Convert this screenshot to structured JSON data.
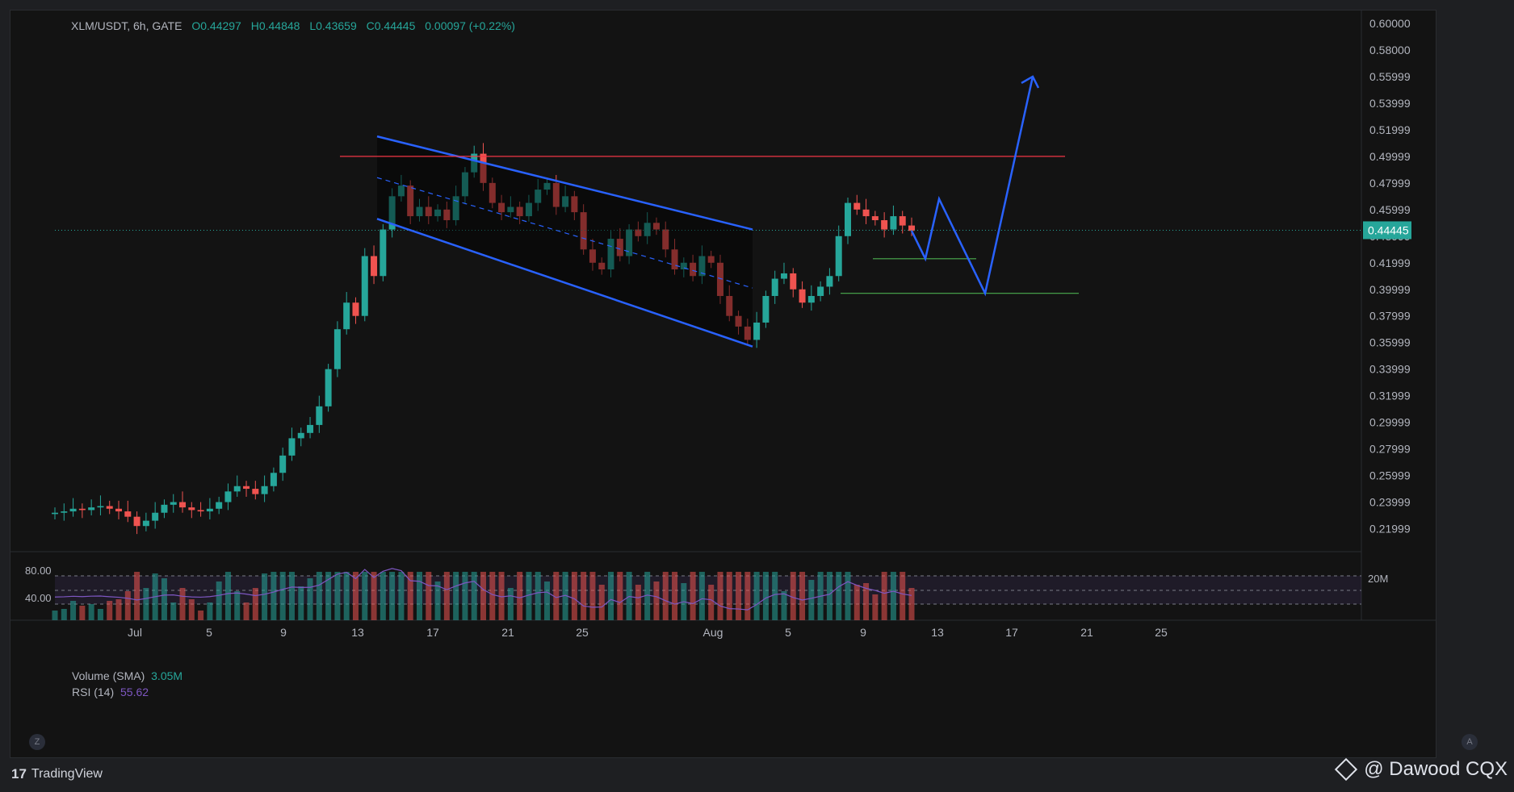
{
  "legend": {
    "symbol": "XLM/USDT, 6h, GATE",
    "open": "O0.44297",
    "high": "H0.44848",
    "low": "L0.43659",
    "close": "C0.44445",
    "change": "0.00097 (+0.22%)"
  },
  "indicators": {
    "volume_label": "Volume (SMA)",
    "volume_value": "3.05M",
    "rsi_label": "RSI (14)",
    "rsi_value": "55.62",
    "rsi_axis": [
      "80.00",
      "40.00"
    ],
    "volume_axis": "20M"
  },
  "price_axis": [
    "0.60000",
    "0.58000",
    "0.55999",
    "0.53999",
    "0.51999",
    "0.49999",
    "0.47999",
    "0.45999",
    "0.43999",
    "0.41999",
    "0.39999",
    "0.37999",
    "0.35999",
    "0.33999",
    "0.31999",
    "0.29999",
    "0.27999",
    "0.25999",
    "0.23999",
    "0.21999"
  ],
  "current_price": "0.44445",
  "time_axis": [
    "Jul",
    "5",
    "9",
    "13",
    "17",
    "21",
    "25",
    "Aug",
    "5",
    "9",
    "13",
    "17",
    "21",
    "25"
  ],
  "buttons": {
    "zoom": "Z",
    "auto": "A"
  },
  "footer": {
    "brand": "TradingView",
    "brand_logo": "17",
    "credit": "@ Dawood CQX"
  },
  "colors": {
    "up": "#26a69a",
    "down": "#ef5350",
    "channel": "#2962ff",
    "resistance": "#f23645",
    "support": "#4caf50",
    "rsi": "#7e57c2"
  },
  "chart_data": {
    "type": "candlestick",
    "timeframe": "6h",
    "x_range": [
      "Jun 30",
      "Aug 27"
    ],
    "ylim": [
      0.21,
      0.6
    ],
    "candles_close_approx": [
      0.232,
      0.233,
      0.235,
      0.234,
      0.236,
      0.237,
      0.235,
      0.233,
      0.229,
      0.222,
      0.226,
      0.232,
      0.238,
      0.24,
      0.236,
      0.234,
      0.233,
      0.235,
      0.24,
      0.248,
      0.252,
      0.25,
      0.246,
      0.252,
      0.262,
      0.275,
      0.288,
      0.292,
      0.298,
      0.312,
      0.34,
      0.37,
      0.39,
      0.38,
      0.425,
      0.41,
      0.445,
      0.47,
      0.478,
      0.455,
      0.462,
      0.455,
      0.46,
      0.452,
      0.47,
      0.488,
      0.502,
      0.48,
      0.465,
      0.458,
      0.462,
      0.455,
      0.465,
      0.475,
      0.48,
      0.462,
      0.47,
      0.458,
      0.43,
      0.42,
      0.415,
      0.438,
      0.425,
      0.445,
      0.44,
      0.45,
      0.445,
      0.43,
      0.415,
      0.42,
      0.41,
      0.425,
      0.42,
      0.395,
      0.38,
      0.372,
      0.362,
      0.375,
      0.395,
      0.408,
      0.412,
      0.4,
      0.39,
      0.395,
      0.402,
      0.41,
      0.44,
      0.465,
      0.46,
      0.455,
      0.452,
      0.445,
      0.455,
      0.448,
      0.444
    ],
    "drawings": {
      "resistance_level": 0.5,
      "support_level": 0.397,
      "minor_support": 0.423,
      "channel_upper": [
        [
          "Jul 13",
          0.515
        ],
        [
          "Aug 2",
          0.445
        ]
      ],
      "channel_lower": [
        [
          "Jul 13",
          0.453
        ],
        [
          "Aug 2",
          0.357
        ]
      ],
      "projection": [
        0.444,
        0.423,
        0.468,
        0.397,
        0.56
      ]
    },
    "volume_sma": "3.05M",
    "rsi": 55.62
  }
}
